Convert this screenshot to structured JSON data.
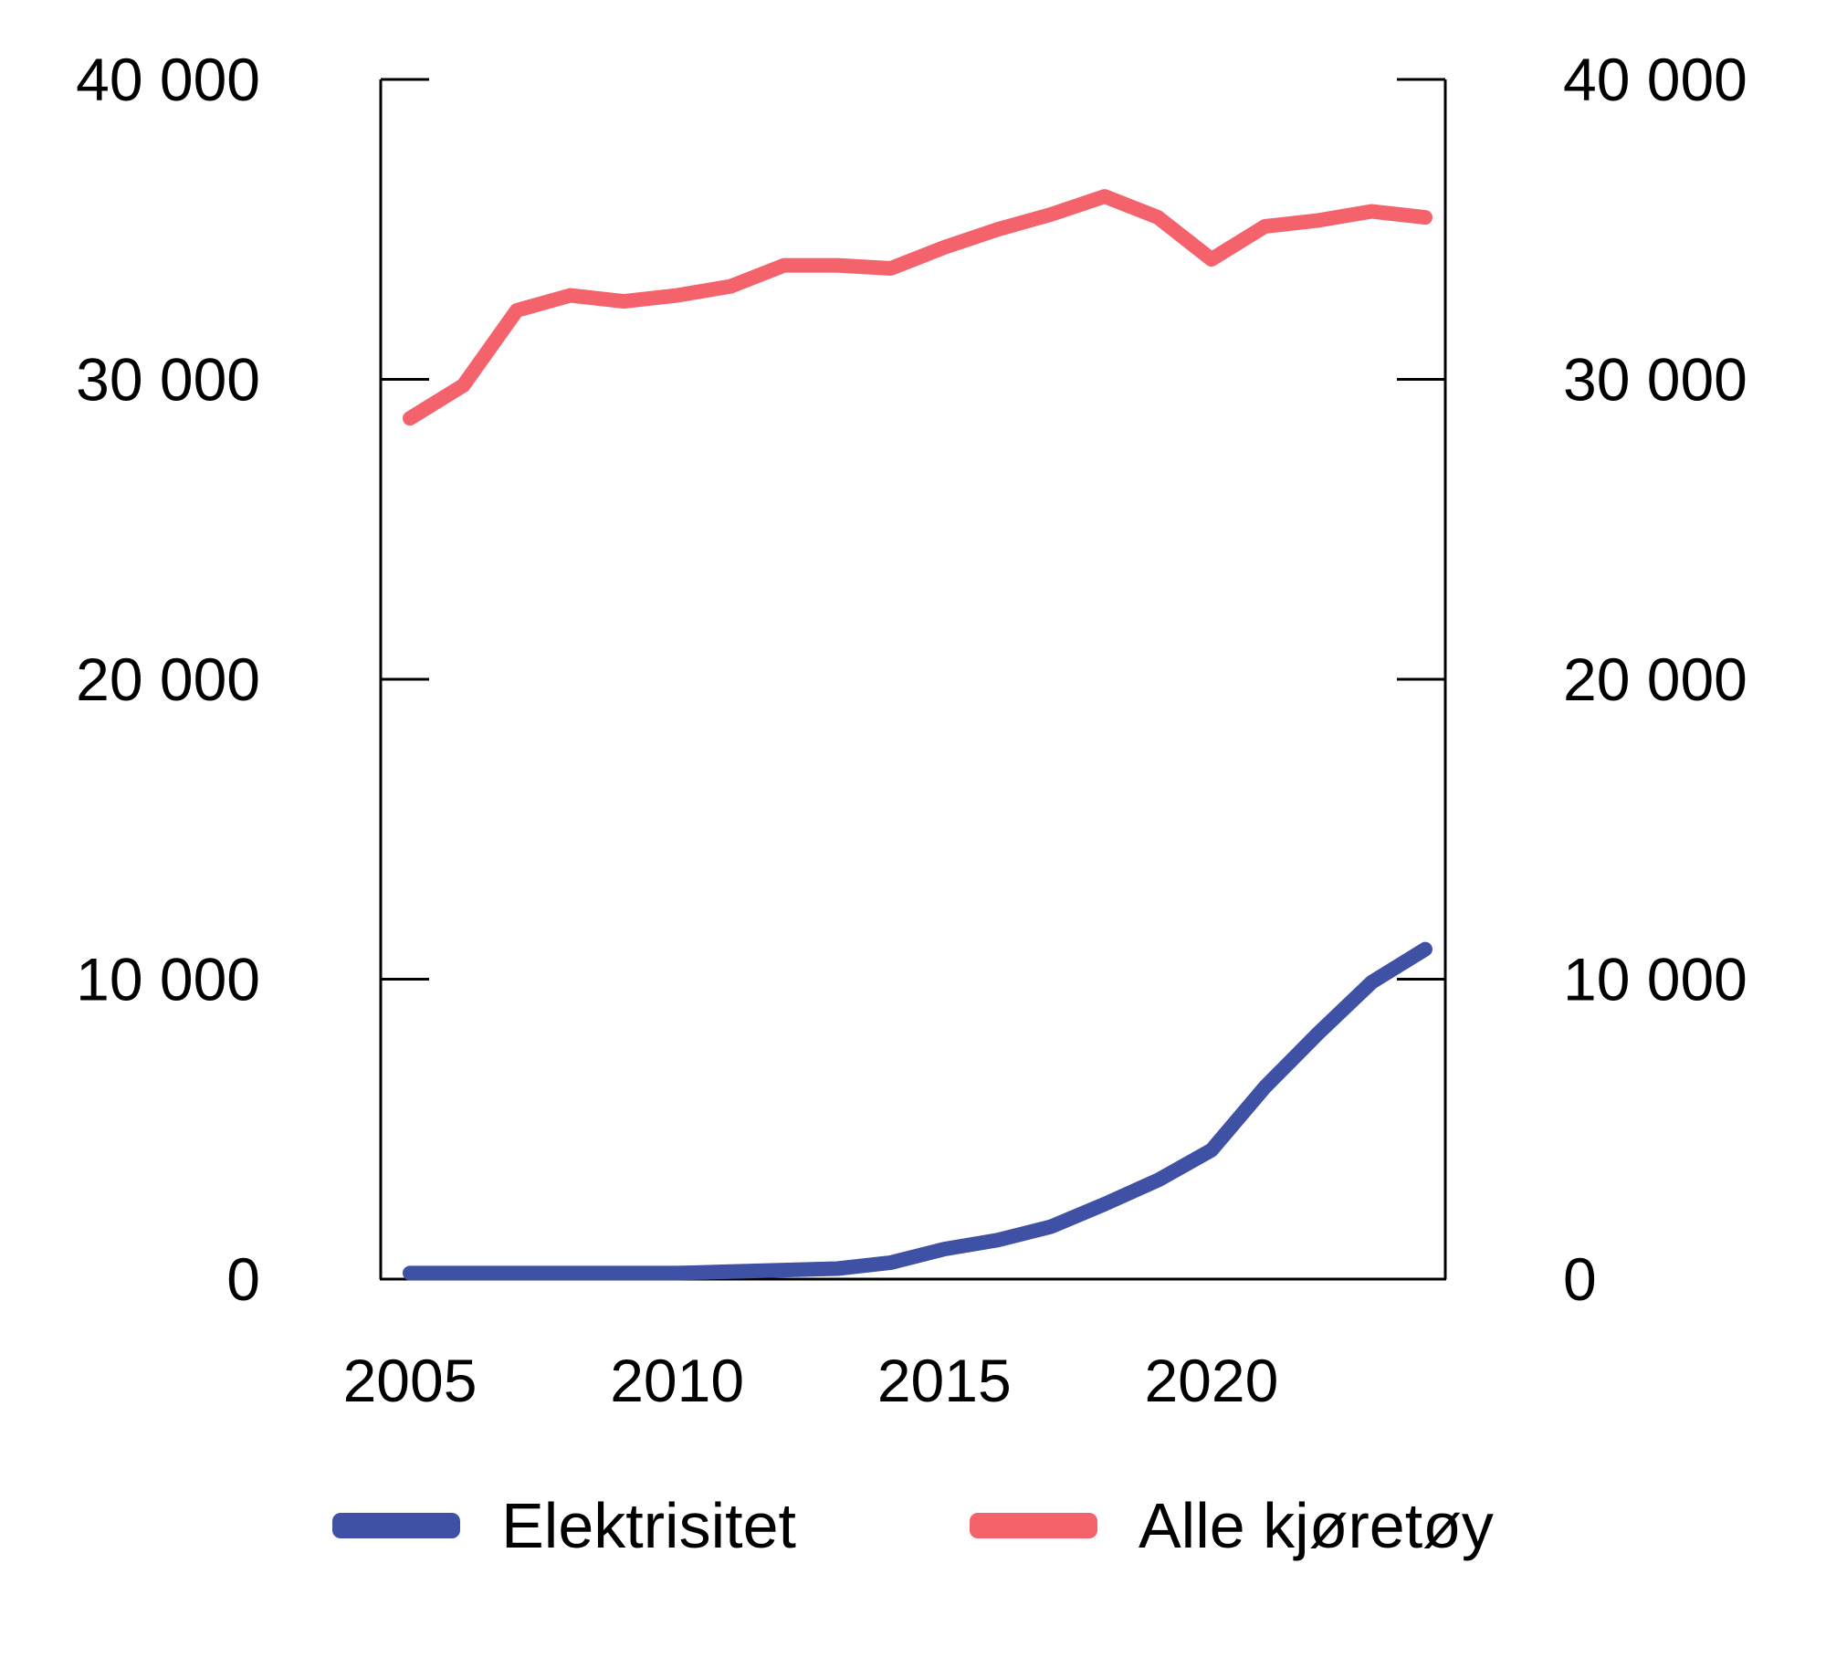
{
  "chart_data": {
    "type": "line",
    "x": [
      2005,
      2006,
      2007,
      2008,
      2009,
      2010,
      2011,
      2012,
      2013,
      2014,
      2015,
      2016,
      2017,
      2018,
      2019,
      2020,
      2021,
      2022,
      2023,
      2024
    ],
    "series": [
      {
        "name": "Elektrisitet",
        "color": "#3E51A4",
        "values": [
          200,
          200,
          200,
          200,
          200,
          200,
          250,
          300,
          350,
          550,
          1000,
          1300,
          1750,
          2500,
          3300,
          4300,
          6400,
          8200,
          9900,
          11000
        ]
      },
      {
        "name": "Alle kjøretøy",
        "color": "#F4626C",
        "values": [
          28700,
          29800,
          32300,
          32800,
          32600,
          32800,
          33100,
          33800,
          33800,
          33700,
          34400,
          35000,
          35500,
          36100,
          35400,
          34000,
          35100,
          35300,
          35600,
          35400
        ]
      }
    ],
    "xlim": [
      2005,
      2024
    ],
    "ylim": [
      0,
      40000
    ],
    "x_ticks": {
      "years": [
        2005,
        2010,
        2015,
        2020
      ],
      "labels": [
        "2005",
        "2010",
        "2015",
        "2020"
      ]
    },
    "y_ticks": {
      "values": [
        0,
        10000,
        20000,
        30000,
        40000
      ],
      "labels": [
        "0",
        "10 000",
        "20 000",
        "30 000",
        "40 000"
      ]
    },
    "y_axis_sides": [
      "left",
      "right"
    ],
    "grid": false,
    "legend_position": "bottom"
  },
  "colors": {
    "background": "#FFFFFF",
    "axis": "#000000",
    "text": "#000000"
  }
}
